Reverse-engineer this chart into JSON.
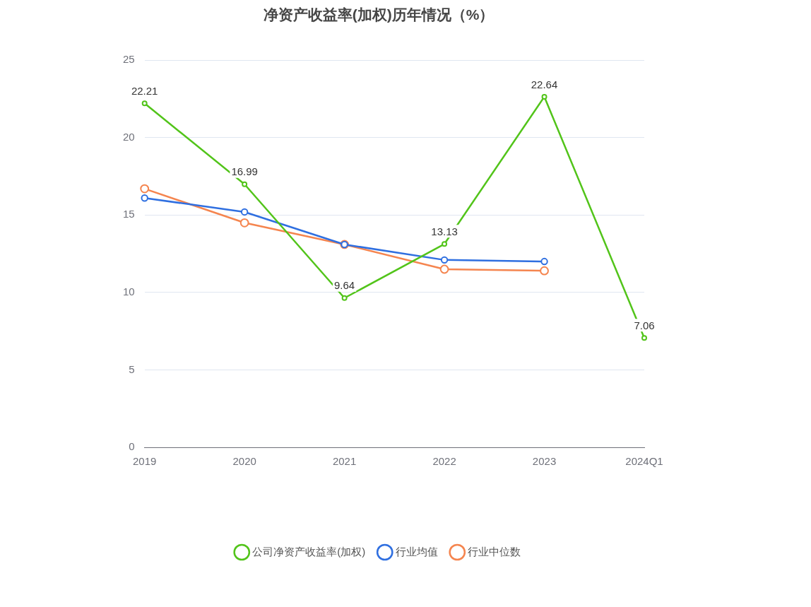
{
  "chart_data": {
    "type": "line",
    "title": "净资产收益率(加权)历年情况（%）",
    "categories": [
      "2019",
      "2020",
      "2021",
      "2022",
      "2023",
      "2024Q1"
    ],
    "series": [
      {
        "name": "公司净资产收益率(加权)",
        "color": "#52c41a",
        "values": [
          22.21,
          16.99,
          9.64,
          13.13,
          22.64,
          7.06
        ],
        "value_labels": [
          "22.21",
          "16.99",
          "9.64",
          "13.13",
          "22.64",
          "7.06"
        ]
      },
      {
        "name": "行业均值",
        "color": "#2f6fe0",
        "values": [
          16.1,
          15.2,
          13.1,
          12.1,
          12.0,
          null
        ]
      },
      {
        "name": "行业中位数",
        "color": "#f5854f",
        "values": [
          16.7,
          14.5,
          13.1,
          11.5,
          11.4,
          null
        ]
      }
    ],
    "ylim": [
      0,
      25
    ],
    "yticks": [
      0,
      5,
      10,
      15,
      20,
      25
    ],
    "grid": "y",
    "legend": "bottom",
    "marker": "circle",
    "line_style": "solid"
  }
}
